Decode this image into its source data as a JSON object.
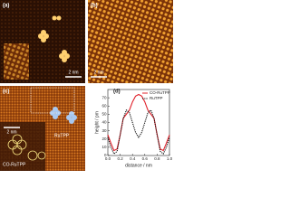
{
  "panels": {
    "a": {
      "label": "(a)",
      "scale": "2 nm"
    },
    "b": {
      "label": "(b)",
      "scale": "2 nm"
    },
    "c": {
      "label": "(c)",
      "scale": "2 nm",
      "molecule_1": "RuTPP",
      "molecule_2": "CO-RuTPP"
    },
    "d": {
      "label": "(d)"
    }
  },
  "chart_data": {
    "type": "line",
    "xlabel": "distance / nm",
    "ylabel": "height / pm",
    "x": [
      0,
      0.05,
      0.1,
      0.15,
      0.2,
      0.25,
      0.3,
      0.35,
      0.4,
      0.45,
      0.5,
      0.55,
      0.6,
      0.65,
      0.7,
      0.75,
      0.8,
      0.85,
      0.9,
      0.95,
      1.0
    ],
    "series": [
      {
        "name": "CO-RuTPP",
        "color": "#e0202a",
        "dash": false,
        "values": [
          25,
          15,
          6,
          8,
          25,
          45,
          50,
          55,
          65,
          72,
          74,
          72,
          65,
          55,
          50,
          45,
          25,
          8,
          6,
          15,
          25
        ]
      },
      {
        "name": "RuTPP",
        "color": "#111111",
        "dash": true,
        "values": [
          22,
          10,
          2,
          5,
          25,
          45,
          55,
          52,
          40,
          28,
          22,
          28,
          40,
          52,
          55,
          45,
          25,
          5,
          2,
          10,
          22
        ]
      }
    ],
    "xlim": [
      0,
      1
    ],
    "xticks": [
      {
        "value": 0,
        "label": "0.0"
      },
      0.2,
      0.4,
      0.6,
      0.8,
      {
        "value": 1,
        "label": "1.0"
      }
    ],
    "ylim": [
      0,
      80
    ],
    "yticks": [
      0,
      10,
      20,
      30,
      40,
      50,
      60,
      70
    ],
    "legend": "upper-right"
  }
}
